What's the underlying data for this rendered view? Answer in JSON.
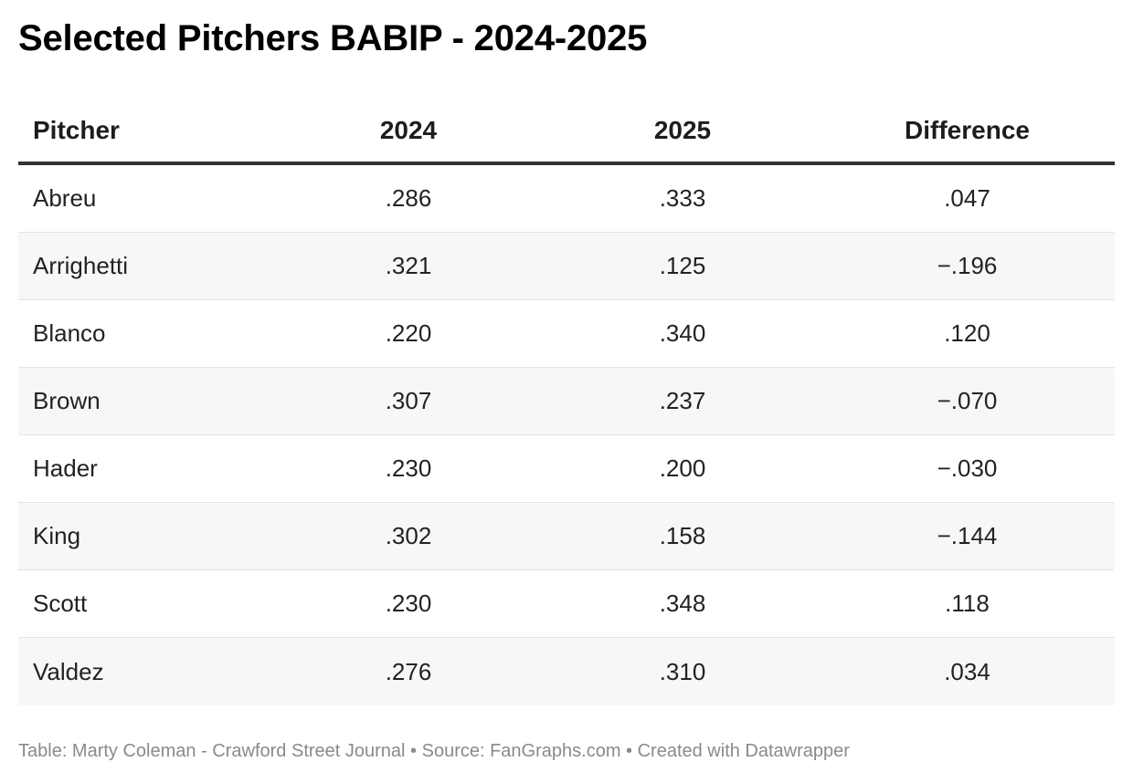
{
  "title": "Selected Pitchers BABIP - 2024-2025",
  "footer": "Table: Marty Coleman - Crawford Street Journal • Source: FanGraphs.com • Created with Datawrapper",
  "chart_data": {
    "type": "table",
    "columns": [
      "Pitcher",
      "2024",
      "2025",
      "Difference"
    ],
    "rows": [
      [
        "Abreu",
        ".286",
        ".333",
        ".047"
      ],
      [
        "Arrighetti",
        ".321",
        ".125",
        "−.196"
      ],
      [
        "Blanco",
        ".220",
        ".340",
        ".120"
      ],
      [
        "Brown",
        ".307",
        ".237",
        "−.070"
      ],
      [
        "Hader",
        ".230",
        ".200",
        "−.030"
      ],
      [
        "King",
        ".302",
        ".158",
        "−.144"
      ],
      [
        "Scott",
        ".230",
        ".348",
        ".118"
      ],
      [
        "Valdez",
        ".276",
        ".310",
        ".034"
      ]
    ]
  },
  "colors": {
    "header_rule": "#333333",
    "row_alt": "#f7f7f7",
    "footer_text": "#8a8a8a"
  }
}
